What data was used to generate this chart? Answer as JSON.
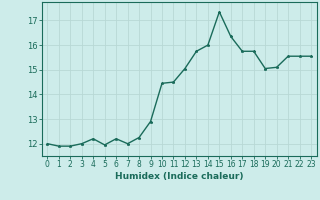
{
  "x": [
    0,
    1,
    2,
    3,
    4,
    5,
    6,
    7,
    8,
    9,
    10,
    11,
    12,
    13,
    14,
    15,
    16,
    17,
    18,
    19,
    20,
    21,
    22,
    23
  ],
  "y": [
    12.0,
    11.9,
    11.9,
    12.0,
    12.2,
    11.95,
    12.2,
    12.0,
    12.25,
    12.9,
    14.45,
    14.5,
    15.05,
    15.75,
    16.0,
    17.35,
    16.35,
    15.75,
    15.75,
    15.05,
    15.1,
    15.55,
    15.55,
    15.55
  ],
  "line_color": "#1a6b5a",
  "marker_color": "#1a6b5a",
  "bg_color": "#cdecea",
  "grid_color": "#b8d8d5",
  "xlabel": "Humidex (Indice chaleur)",
  "xlim": [
    -0.5,
    23.5
  ],
  "ylim": [
    11.5,
    17.75
  ],
  "yticks": [
    12,
    13,
    14,
    15,
    16,
    17
  ],
  "xticks": [
    0,
    1,
    2,
    3,
    4,
    5,
    6,
    7,
    8,
    9,
    10,
    11,
    12,
    13,
    14,
    15,
    16,
    17,
    18,
    19,
    20,
    21,
    22,
    23
  ],
  "xlabel_fontsize": 6.5,
  "ytick_fontsize": 6.0,
  "xtick_fontsize": 5.5,
  "linewidth": 1.0,
  "markersize": 2.0,
  "spine_color": "#1a6b5a"
}
